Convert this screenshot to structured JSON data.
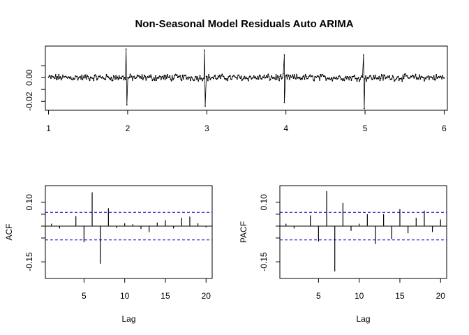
{
  "chart_data": [
    {
      "type": "line",
      "title": "Non-Seasonal Model Residuals Auto ARIMA",
      "xlabel": "",
      "ylabel": "",
      "xlim": [
        0.96,
        6.04
      ],
      "ylim": [
        -0.0275,
        0.0265
      ],
      "x_ticks": [
        1,
        2,
        3,
        4,
        5,
        6
      ],
      "x_tick_labels": [
        "1",
        "2",
        "3",
        "4",
        "5",
        "6"
      ],
      "y_ticks": [
        -0.02,
        0.0
      ],
      "y_tick_labels": [
        "-0.02",
        "0.00"
      ],
      "y_ticks_unlabeled": [
        -0.01,
        0.01
      ],
      "series_points": 500,
      "base_noise_amplitude": 0.0022,
      "spikes": [
        {
          "x": 1.98,
          "y": 0.024
        },
        {
          "x": 1.99,
          "y": -0.023
        },
        {
          "x": 2.97,
          "y": 0.023
        },
        {
          "x": 2.98,
          "y": -0.024
        },
        {
          "x": 3.98,
          "y": 0.019
        },
        {
          "x": 3.98,
          "y": -0.021
        },
        {
          "x": 4.98,
          "y": 0.019
        },
        {
          "x": 4.99,
          "y": -0.026
        }
      ],
      "grid": false,
      "line_color": "#000000"
    },
    {
      "type": "bar",
      "xlabel": "Lag",
      "ylabel": "ACF",
      "xlim": [
        0.25,
        20.75
      ],
      "ylim": [
        -0.22,
        0.17
      ],
      "x_ticks": [
        5,
        10,
        15,
        20
      ],
      "x_tick_labels": [
        "5",
        "10",
        "15",
        "20"
      ],
      "y_ticks": [
        -0.15,
        0.1
      ],
      "y_tick_labels": [
        "-0.15",
        "0.10"
      ],
      "y_ticks_unlabeled": [
        -0.05,
        0.0,
        0.05
      ],
      "lags": [
        1,
        2,
        3,
        4,
        5,
        6,
        7,
        8,
        9,
        10,
        11,
        12,
        13,
        14,
        15,
        16,
        17,
        18,
        19,
        20
      ],
      "values": [
        0.01,
        -0.01,
        0.0,
        0.042,
        -0.068,
        0.142,
        -0.158,
        0.075,
        -0.008,
        0.012,
        0.008,
        -0.012,
        -0.025,
        0.015,
        0.025,
        -0.01,
        0.035,
        0.04,
        0.012,
        -0.005
      ],
      "ci_bounds": [
        -0.058,
        0.058
      ],
      "ci_color": "#0000cc",
      "grid": false
    },
    {
      "type": "bar",
      "xlabel": "Lag",
      "ylabel": "PACF",
      "xlim": [
        0.25,
        20.75
      ],
      "ylim": [
        -0.22,
        0.17
      ],
      "x_ticks": [
        5,
        10,
        15,
        20
      ],
      "x_tick_labels": [
        "5",
        "10",
        "15",
        "20"
      ],
      "y_ticks": [
        -0.15,
        0.1
      ],
      "y_tick_labels": [
        "-0.15",
        "0.10"
      ],
      "y_ticks_unlabeled": [
        -0.05,
        0.0,
        0.05
      ],
      "lags": [
        1,
        2,
        3,
        4,
        5,
        6,
        7,
        8,
        9,
        10,
        11,
        12,
        13,
        14,
        15,
        16,
        17,
        18,
        19,
        20
      ],
      "values": [
        0.01,
        -0.01,
        0.0,
        0.045,
        -0.065,
        0.147,
        -0.19,
        0.097,
        -0.02,
        0.01,
        0.05,
        -0.075,
        0.05,
        -0.055,
        0.072,
        -0.03,
        0.035,
        0.065,
        -0.025,
        0.028
      ],
      "ci_bounds": [
        -0.058,
        0.058
      ],
      "ci_color": "#0000cc",
      "grid": false
    }
  ]
}
